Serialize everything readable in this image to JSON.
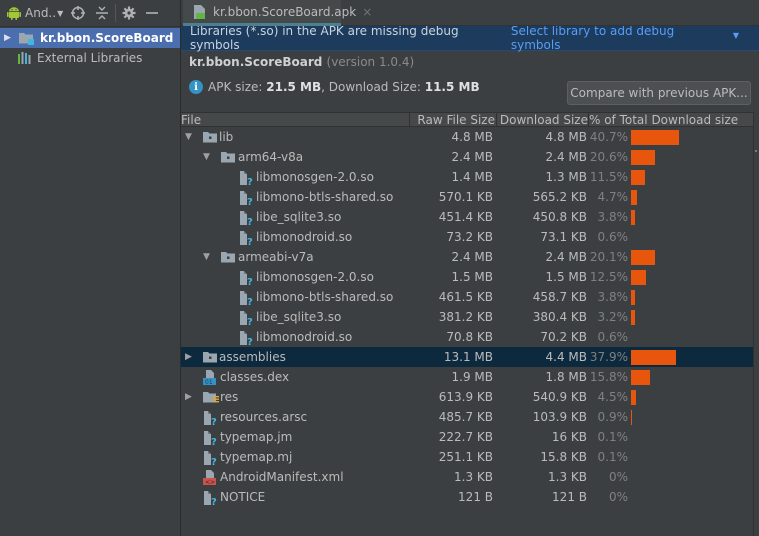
{
  "left_panel": {
    "toolbar": {
      "project_view_label": "And..",
      "icons": [
        "android-icon",
        "dropdown-caret-icon",
        "locate-icon",
        "collapse-all-icon",
        "gear-icon",
        "minimize-icon"
      ]
    },
    "tree": [
      {
        "label": "kr.bbon.ScoreBoard",
        "icon": "module-folder-icon",
        "expanded": false,
        "selected": true
      },
      {
        "label": "External Libraries",
        "icon": "library-icon",
        "selected": false
      }
    ]
  },
  "editor": {
    "tab": {
      "title": "kr.bbon.ScoreBoard.apk",
      "icon": "apk-icon",
      "close": "×"
    },
    "banner": {
      "message": "Libraries (*.so) in the APK are missing debug symbols",
      "action": "Select library to add debug symbols",
      "action_caret": "▼",
      "colors": {
        "background": "#1d3b5c",
        "link": "#589df6"
      }
    },
    "summary": {
      "app_name": "kr.bbon.ScoreBoard",
      "version_text": "(version 1.0.4)",
      "apk_size_label": "APK size: ",
      "apk_size_value": "21.5 MB",
      "download_size_label": ", Download Size: ",
      "download_size_value": "11.5 MB",
      "compare_button": "Compare with previous APK..."
    },
    "table": {
      "columns": [
        "File",
        "Raw File Size",
        "Download Size",
        "% of Total Download size"
      ],
      "bar_color": "#e8550d",
      "rows": [
        {
          "name": "lib",
          "depth": 0,
          "type": "folder",
          "expand": "open",
          "raw": "4.8 MB",
          "download": "4.8 MB",
          "pct": "40.7%",
          "pct_value": 40.7
        },
        {
          "name": "arm64-v8a",
          "depth": 1,
          "type": "folder",
          "expand": "open",
          "raw": "2.4 MB",
          "download": "2.4 MB",
          "pct": "20.6%",
          "pct_value": 20.6
        },
        {
          "name": "libmonosgen-2.0.so",
          "depth": 2,
          "type": "unknown-file",
          "raw": "1.4 MB",
          "download": "1.3 MB",
          "pct": "11.5%",
          "pct_value": 11.5
        },
        {
          "name": "libmono-btls-shared.so",
          "depth": 2,
          "type": "unknown-file",
          "raw": "570.1 KB",
          "download": "565.2 KB",
          "pct": "4.7%",
          "pct_value": 4.7
        },
        {
          "name": "libe_sqlite3.so",
          "depth": 2,
          "type": "unknown-file",
          "raw": "451.4 KB",
          "download": "450.8 KB",
          "pct": "3.8%",
          "pct_value": 3.8
        },
        {
          "name": "libmonodroid.so",
          "depth": 2,
          "type": "unknown-file",
          "raw": "73.2 KB",
          "download": "73.1 KB",
          "pct": "0.6%",
          "pct_value": 0.6
        },
        {
          "name": "armeabi-v7a",
          "depth": 1,
          "type": "folder",
          "expand": "open",
          "raw": "2.4 MB",
          "download": "2.4 MB",
          "pct": "20.1%",
          "pct_value": 20.1
        },
        {
          "name": "libmonosgen-2.0.so",
          "depth": 2,
          "type": "unknown-file",
          "raw": "1.5 MB",
          "download": "1.5 MB",
          "pct": "12.5%",
          "pct_value": 12.5
        },
        {
          "name": "libmono-btls-shared.so",
          "depth": 2,
          "type": "unknown-file",
          "raw": "461.5 KB",
          "download": "458.7 KB",
          "pct": "3.8%",
          "pct_value": 3.8
        },
        {
          "name": "libe_sqlite3.so",
          "depth": 2,
          "type": "unknown-file",
          "raw": "381.2 KB",
          "download": "380.4 KB",
          "pct": "3.2%",
          "pct_value": 3.2
        },
        {
          "name": "libmonodroid.so",
          "depth": 2,
          "type": "unknown-file",
          "raw": "70.8 KB",
          "download": "70.2 KB",
          "pct": "0.6%",
          "pct_value": 0.6
        },
        {
          "name": "assemblies",
          "depth": 0,
          "type": "folder",
          "expand": "closed",
          "selected": true,
          "raw": "13.1 MB",
          "download": "4.4 MB",
          "pct": "37.9%",
          "pct_value": 37.9
        },
        {
          "name": "classes.dex",
          "depth": 0,
          "type": "dex-file",
          "raw": "1.9 MB",
          "download": "1.8 MB",
          "pct": "15.8%",
          "pct_value": 15.8
        },
        {
          "name": "res",
          "depth": 0,
          "type": "res-folder",
          "expand": "closed",
          "raw": "613.9 KB",
          "download": "540.9 KB",
          "pct": "4.5%",
          "pct_value": 4.5
        },
        {
          "name": "resources.arsc",
          "depth": 0,
          "type": "unknown-file",
          "raw": "485.7 KB",
          "download": "103.9 KB",
          "pct": "0.9%",
          "pct_value": 0.9
        },
        {
          "name": "typemap.jm",
          "depth": 0,
          "type": "unknown-file",
          "raw": "222.7 KB",
          "download": "16 KB",
          "pct": "0.1%",
          "pct_value": 0.1
        },
        {
          "name": "typemap.mj",
          "depth": 0,
          "type": "unknown-file",
          "raw": "251.1 KB",
          "download": "15.8 KB",
          "pct": "0.1%",
          "pct_value": 0.1
        },
        {
          "name": "AndroidManifest.xml",
          "depth": 0,
          "type": "xml-file",
          "raw": "1.3 KB",
          "download": "1.3 KB",
          "pct": "0%",
          "pct_value": 0
        },
        {
          "name": "NOTICE",
          "depth": 0,
          "type": "unknown-file",
          "raw": "121 B",
          "download": "121 B",
          "pct": "0%",
          "pct_value": 0
        }
      ]
    }
  }
}
